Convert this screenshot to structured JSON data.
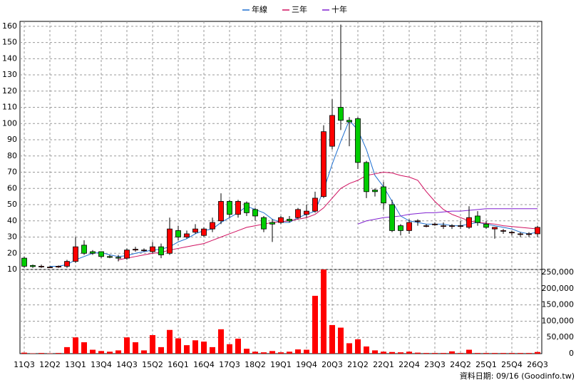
{
  "chart_data": {
    "type": "candlestick",
    "categories": [
      "11Q3",
      null,
      null,
      "12Q2",
      null,
      null,
      "13Q1",
      null,
      null,
      "13Q4",
      null,
      null,
      "14Q3",
      null,
      null,
      "15Q2",
      null,
      null,
      "16Q1",
      null,
      null,
      "16Q4",
      null,
      null,
      "17Q3",
      null,
      null,
      "18Q2",
      null,
      null,
      "19Q1",
      null,
      null,
      "19Q4",
      null,
      null,
      "20Q3",
      null,
      null,
      "21Q2",
      null,
      null,
      "22Q1",
      null,
      null,
      "22Q4",
      null,
      null,
      "23Q3",
      null,
      null,
      "24Q2",
      null,
      null,
      "25Q1",
      null,
      null,
      "25Q4",
      null,
      null,
      "26Q3"
    ],
    "open": [
      17,
      12.5,
      12,
      11.5,
      11.5,
      12,
      15,
      25,
      21,
      21,
      18,
      17.5,
      17,
      22,
      22,
      21,
      24,
      20,
      34,
      30,
      33,
      31,
      35,
      40,
      52,
      44,
      51,
      47,
      42,
      39,
      39,
      41,
      42,
      44,
      46,
      55,
      86,
      110,
      102,
      103,
      76,
      59,
      61,
      50,
      37,
      34,
      40,
      37,
      38,
      37,
      37,
      37,
      36,
      43,
      38,
      35,
      34,
      33,
      32,
      32,
      32
    ],
    "high": [
      18,
      13,
      13,
      12,
      12.5,
      16,
      30,
      28,
      22,
      21,
      19,
      19,
      23,
      24,
      23,
      27,
      26,
      42,
      37,
      34,
      38,
      36,
      42,
      57,
      53,
      53,
      52,
      48,
      43,
      41,
      43,
      43,
      48,
      50,
      58,
      99,
      115,
      161,
      104,
      104,
      77,
      60,
      64,
      53,
      38,
      41,
      41,
      38,
      39,
      39,
      38,
      40,
      49,
      46,
      40,
      36,
      35,
      34,
      33,
      33,
      37
    ],
    "low": [
      11,
      11,
      11,
      11,
      11,
      11,
      14,
      19,
      19,
      17,
      17,
      15,
      16,
      21,
      21,
      20,
      17,
      19,
      28,
      29,
      32,
      30,
      33,
      38,
      42,
      42,
      43,
      40,
      33,
      27,
      38,
      39,
      41,
      42,
      45,
      54,
      84,
      96,
      86,
      72,
      54,
      55,
      47,
      33,
      31,
      32,
      37,
      36,
      37,
      35,
      35,
      35,
      35,
      37,
      35,
      29,
      32,
      31,
      30,
      30,
      30
    ],
    "close": [
      12,
      11.8,
      12,
      11.5,
      12,
      15,
      24,
      20,
      20,
      18,
      17.5,
      17,
      22,
      22.5,
      22,
      24,
      19,
      35,
      30,
      32,
      35,
      35,
      39,
      52,
      44,
      52,
      45,
      43,
      35,
      38,
      42,
      40,
      47,
      46,
      54,
      95,
      105,
      102,
      101,
      76,
      58,
      58,
      51,
      34,
      34,
      39,
      40,
      37,
      38,
      37,
      37,
      37,
      42,
      39,
      36,
      36,
      34,
      33,
      32,
      32,
      36
    ],
    "up_color": "#ff0000",
    "down_color": "#00cc00",
    "series": [
      {
        "name": "年線",
        "color": "#1f6fd0",
        "values": [
          null,
          null,
          null,
          12,
          12,
          13,
          16,
          18,
          20,
          20.5,
          19,
          18,
          18.5,
          20,
          21,
          22,
          22.5,
          24,
          27,
          29,
          32,
          34,
          35,
          39,
          42,
          45,
          49,
          47,
          45,
          41,
          39,
          39,
          42,
          44,
          46,
          59,
          75,
          89,
          102,
          96,
          84,
          68,
          61,
          52,
          43,
          40,
          39,
          38,
          38,
          38,
          37,
          37,
          38,
          39,
          38,
          37,
          36,
          35,
          33,
          32,
          33
        ]
      },
      {
        "name": "三年",
        "color": "#d01060",
        "values": [
          null,
          null,
          null,
          null,
          null,
          null,
          null,
          null,
          null,
          null,
          null,
          16,
          17,
          18,
          19,
          20,
          20.5,
          22,
          23,
          24,
          25,
          26,
          28,
          30,
          32,
          34,
          36,
          37,
          38,
          39,
          39.5,
          40,
          41,
          42,
          44,
          48,
          54,
          60,
          63,
          65,
          68,
          69,
          70,
          69.5,
          68,
          67,
          65,
          58,
          52,
          47,
          44,
          42,
          40,
          39,
          38.5,
          38,
          37,
          36.5,
          36,
          35.5,
          35
        ]
      },
      {
        "name": "十年",
        "color": "#8020d0",
        "values": [
          null,
          null,
          null,
          null,
          null,
          null,
          null,
          null,
          null,
          null,
          null,
          null,
          null,
          null,
          null,
          null,
          null,
          null,
          null,
          null,
          null,
          null,
          null,
          null,
          null,
          null,
          null,
          null,
          null,
          null,
          null,
          null,
          null,
          null,
          null,
          null,
          null,
          null,
          null,
          38,
          40,
          41,
          42,
          42.5,
          43,
          44,
          44.5,
          45,
          45,
          45.5,
          46,
          46,
          46.5,
          47,
          47.5,
          47.5,
          47.5,
          47.5,
          47.5,
          47.5,
          47.5
        ]
      }
    ],
    "ylim": [
      10,
      163
    ],
    "yticks": [
      10,
      20,
      30,
      40,
      50,
      60,
      70,
      80,
      90,
      100,
      110,
      120,
      130,
      140,
      150,
      160
    ],
    "volume": {
      "color": "#ff0000",
      "values": [
        3000,
        1000,
        2000,
        1000,
        2000,
        20000,
        50000,
        35000,
        12000,
        8000,
        6000,
        10000,
        50000,
        35000,
        10000,
        57000,
        20000,
        73000,
        47000,
        26000,
        41000,
        37000,
        20000,
        75000,
        29000,
        46000,
        15000,
        6000,
        4000,
        8000,
        4000,
        6000,
        13000,
        12000,
        178000,
        259000,
        88000,
        80000,
        32000,
        44000,
        22000,
        10000,
        6000,
        5000,
        4000,
        6000,
        3000,
        2000,
        2000,
        2000,
        7000,
        2000,
        12000,
        2000,
        2000,
        2000,
        2000,
        2000,
        2000,
        2000,
        5000
      ],
      "ylim": [
        0,
        259000
      ],
      "yticks": [
        0,
        {
          "value": 50000,
          "label": "50,000"
        },
        {
          "value": 100000,
          "label": "100,000"
        },
        {
          "value": 150000,
          "label": "150,000"
        },
        {
          "value": 200000,
          "label": "200,000"
        },
        {
          "value": 250000,
          "label": "250,000"
        }
      ]
    },
    "grid": true,
    "note": "資料日期: 09/16 (Goodinfo.tw)"
  }
}
